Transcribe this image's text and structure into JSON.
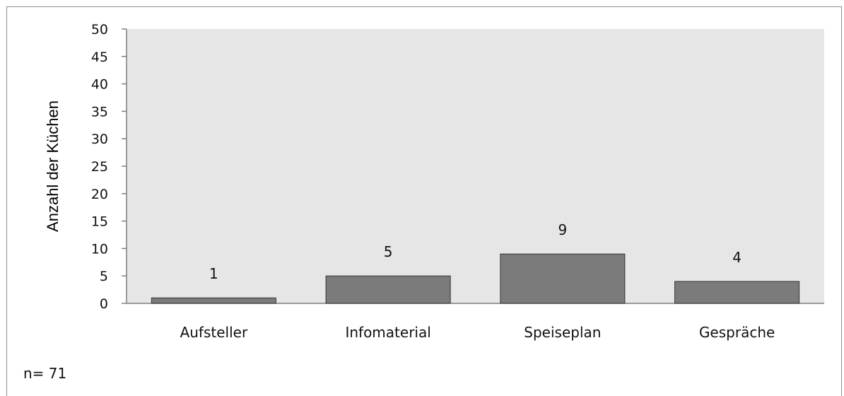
{
  "chart_data": {
    "type": "bar",
    "categories": [
      "Aufsteller",
      "Infomaterial",
      "Speiseplan",
      "Gespräche"
    ],
    "values": [
      1,
      5,
      9,
      4
    ],
    "data_labels": [
      "1",
      "5",
      "9",
      "4"
    ],
    "title": "",
    "xlabel": "",
    "ylabel": "Anzahl der Küchen",
    "ylim": [
      0,
      50
    ],
    "y_ticks": [
      0,
      5,
      10,
      15,
      20,
      25,
      30,
      35,
      40,
      45,
      50
    ],
    "grid": false,
    "legend": "none",
    "annotation": "n= 71",
    "colors": {
      "bar": "#7b7b7b",
      "bar_edge": "#333333",
      "plot_background": "#e6e6e6",
      "axis": "#7f7f7f"
    }
  }
}
